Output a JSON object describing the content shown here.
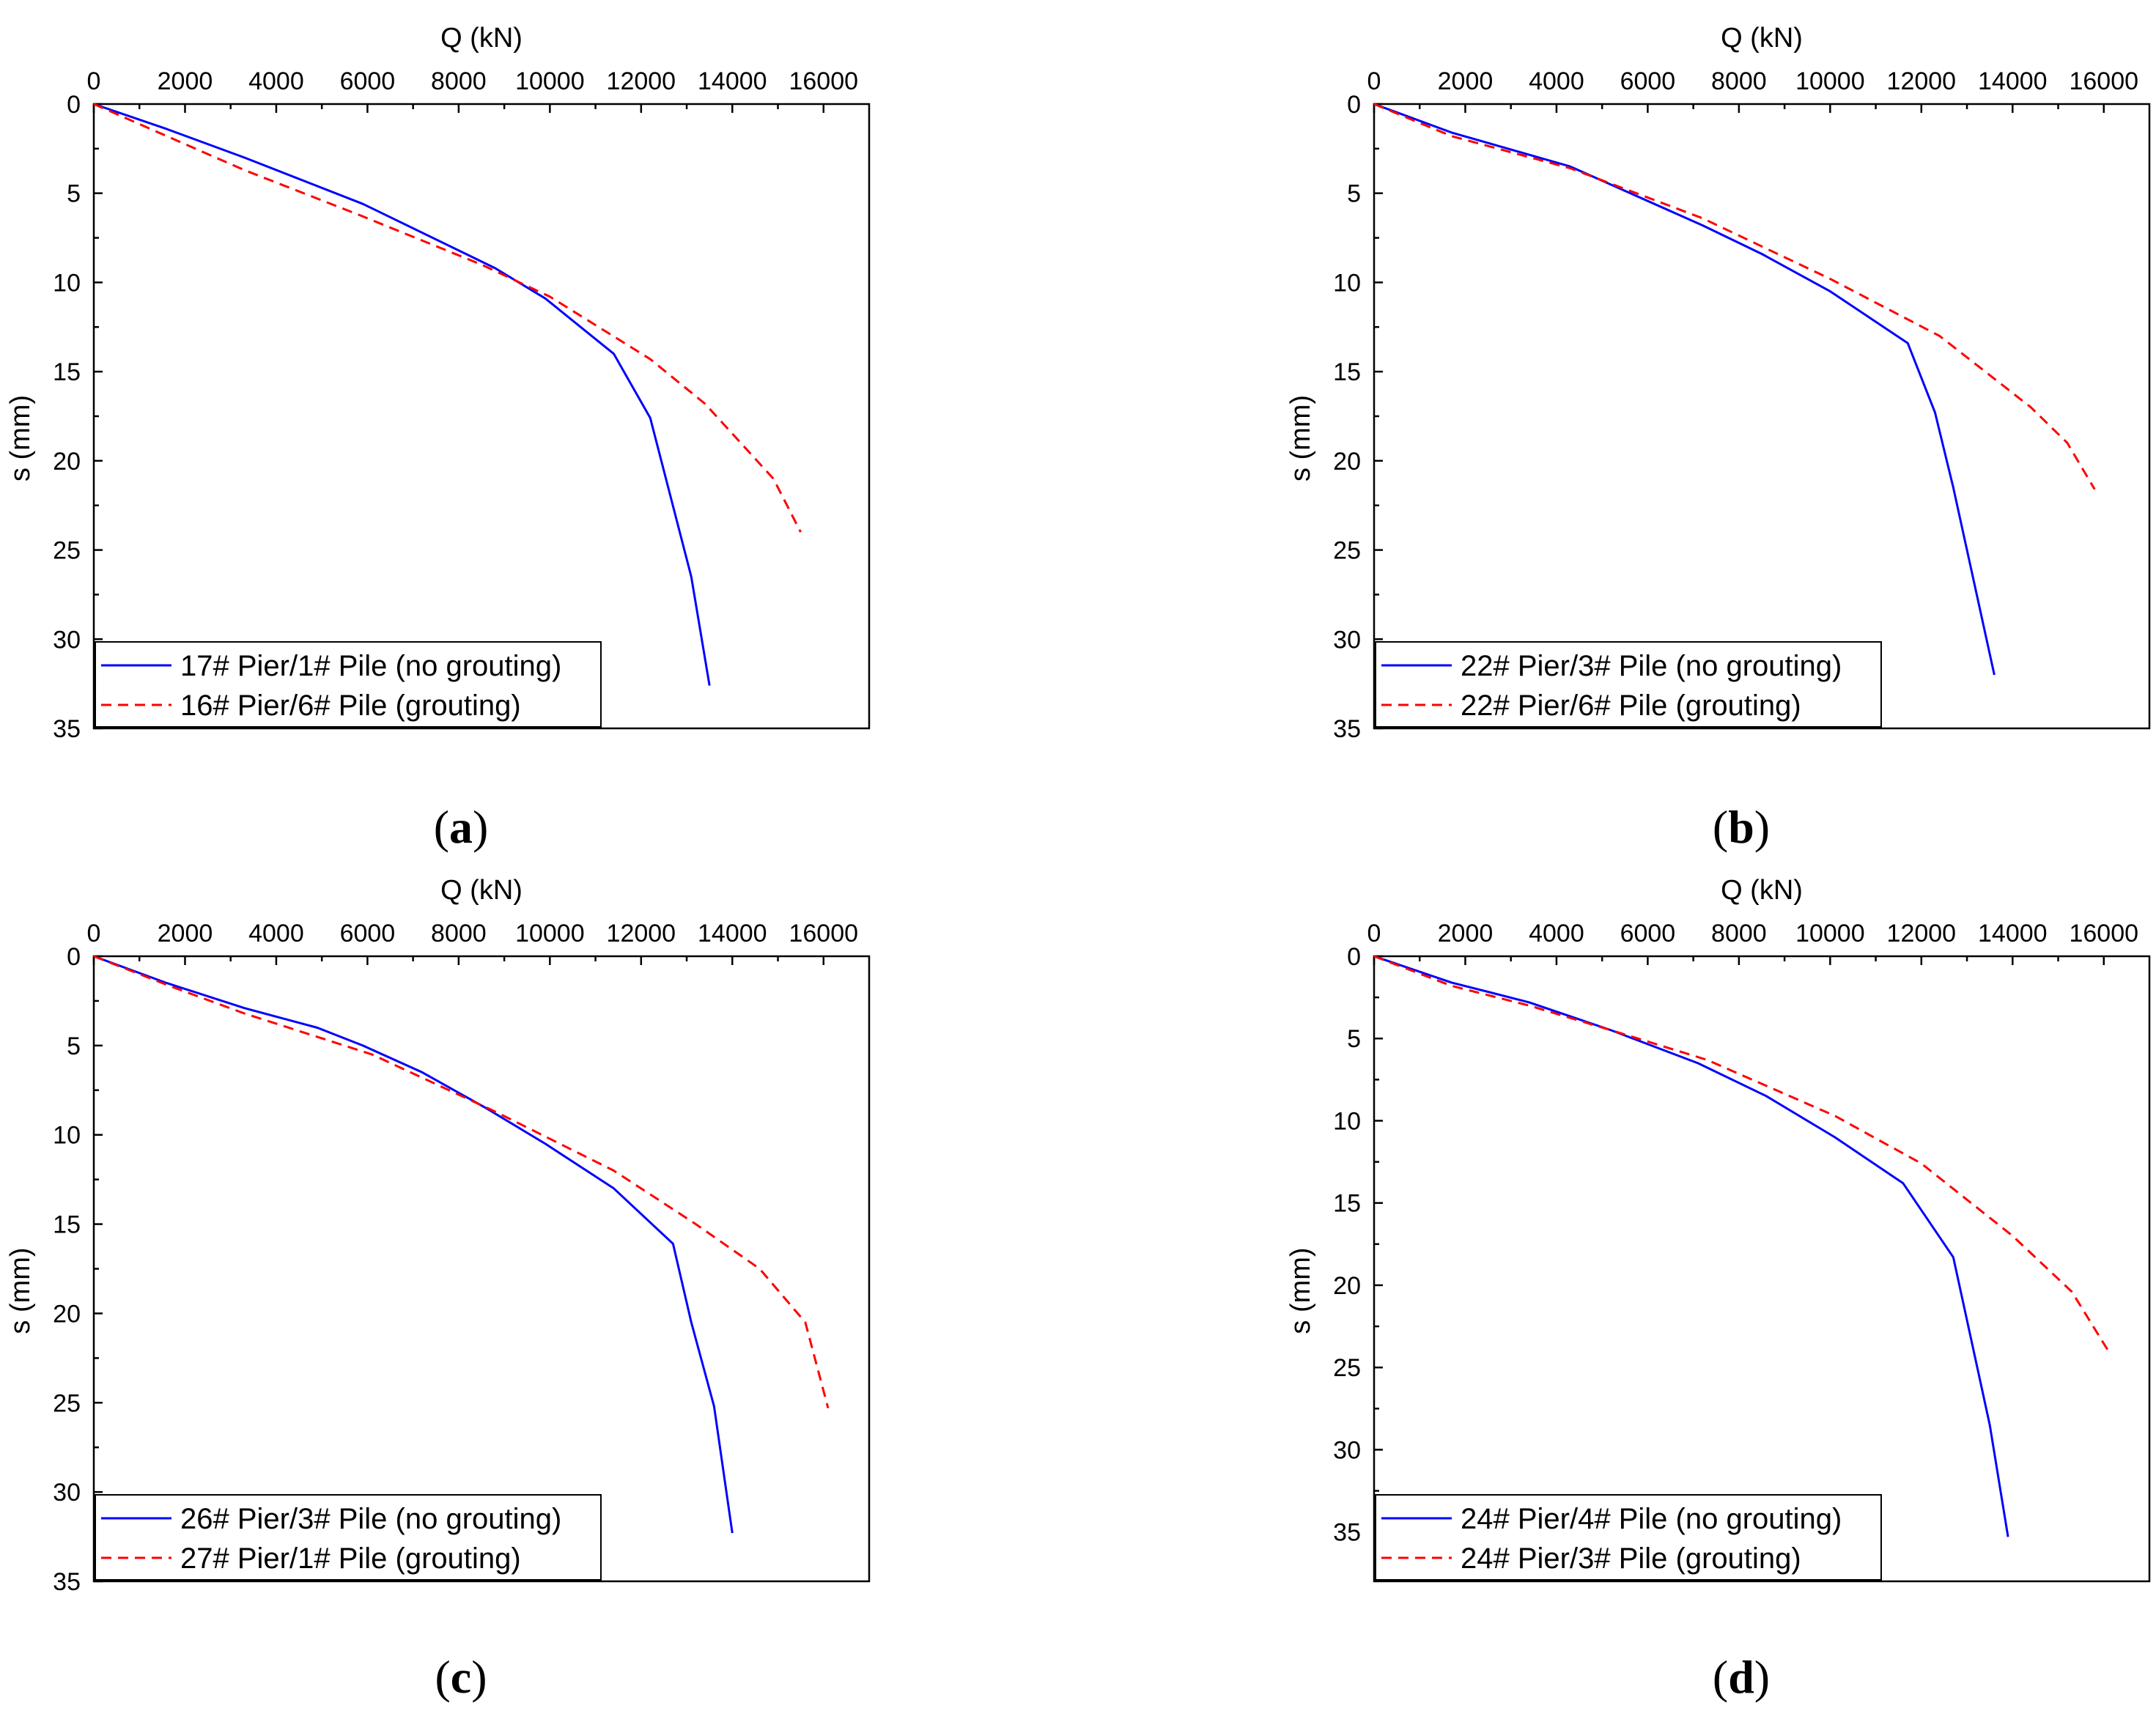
{
  "chart_data": [
    {
      "type": "line",
      "panel_label": "a",
      "xlabel": "Q (kN)",
      "ylabel": "s (mm)",
      "xlim": [
        0,
        17000
      ],
      "ylim": [
        0,
        35
      ],
      "xticks": [
        0,
        2000,
        4000,
        6000,
        8000,
        10000,
        12000,
        14000,
        16000
      ],
      "yticks": [
        0,
        5,
        10,
        15,
        20,
        25,
        30,
        35
      ],
      "y_inverted": true,
      "x_axis_position": "top",
      "legend_position": "bottom-left",
      "series": [
        {
          "name": "17# Pier/1# Pile (no grouting)",
          "color": "#0000ff",
          "dash": "solid",
          "x": [
            0,
            1600,
            3300,
            5900,
            8800,
            9900,
            11400,
            12200,
            13100,
            13500
          ],
          "y": [
            0,
            1.4,
            3.0,
            5.6,
            9.2,
            10.9,
            14.0,
            17.6,
            26.5,
            32.6
          ]
        },
        {
          "name": "16# Pier/6# Pile (grouting)",
          "color": "#ff0000",
          "dash": "dashed",
          "x": [
            0,
            1600,
            3300,
            5800,
            8500,
            10000,
            12200,
            13400,
            14900,
            15500
          ],
          "y": [
            0,
            1.8,
            3.7,
            6.2,
            9.0,
            10.8,
            14.3,
            16.8,
            21.0,
            24.0
          ]
        }
      ]
    },
    {
      "type": "line",
      "panel_label": "b",
      "xlabel": "Q (kN)",
      "ylabel": "s (mm)",
      "xlim": [
        0,
        17000
      ],
      "ylim": [
        0,
        35
      ],
      "xticks": [
        0,
        2000,
        4000,
        6000,
        8000,
        10000,
        12000,
        14000,
        16000
      ],
      "yticks": [
        0,
        5,
        10,
        15,
        20,
        25,
        30,
        35
      ],
      "y_inverted": true,
      "x_axis_position": "top",
      "legend_position": "bottom-left",
      "series": [
        {
          "name": "22# Pier/3# Pile (no grouting)",
          "color": "#0000ff",
          "dash": "solid",
          "x": [
            0,
            1700,
            4300,
            7200,
            8500,
            10000,
            11700,
            12300,
            12700,
            13600
          ],
          "y": [
            0,
            1.6,
            3.5,
            6.8,
            8.4,
            10.5,
            13.4,
            17.3,
            21.5,
            32.0
          ]
        },
        {
          "name": "22# Pier/6# Pile (grouting)",
          "color": "#ff0000",
          "dash": "dashed",
          "x": [
            0,
            1700,
            4300,
            7200,
            10000,
            12400,
            14400,
            15200,
            15800
          ],
          "y": [
            0,
            1.8,
            3.6,
            6.4,
            9.8,
            13.0,
            17.0,
            19.0,
            21.6
          ]
        }
      ]
    },
    {
      "type": "line",
      "panel_label": "c",
      "xlabel": "Q (kN)",
      "ylabel": "s (mm)",
      "xlim": [
        0,
        17000
      ],
      "ylim": [
        0,
        35
      ],
      "xticks": [
        0,
        2000,
        4000,
        6000,
        8000,
        10000,
        12000,
        14000,
        16000
      ],
      "yticks": [
        0,
        5,
        10,
        15,
        20,
        25,
        30,
        35
      ],
      "y_inverted": true,
      "x_axis_position": "top",
      "legend_position": "bottom-left",
      "series": [
        {
          "name": "26# Pier/3# Pile (no grouting)",
          "color": "#0000ff",
          "dash": "solid",
          "x": [
            0,
            1600,
            3300,
            4900,
            5900,
            7200,
            8600,
            9900,
            11400,
            12700,
            13100,
            13600,
            14000
          ],
          "y": [
            0,
            1.5,
            2.9,
            4.0,
            5.0,
            6.5,
            8.5,
            10.5,
            13.0,
            16.1,
            20.5,
            25.2,
            32.3
          ]
        },
        {
          "name": "27# Pier/1# Pile (grouting)",
          "color": "#ff0000",
          "dash": "dashed",
          "x": [
            0,
            1700,
            3300,
            6100,
            8800,
            11400,
            13200,
            14600,
            15600,
            16100
          ],
          "y": [
            0,
            1.7,
            3.2,
            5.5,
            8.7,
            12.0,
            15.0,
            17.5,
            20.5,
            25.3
          ]
        }
      ]
    },
    {
      "type": "line",
      "panel_label": "d",
      "xlabel": "Q (kN)",
      "ylabel": "s (mm)",
      "xlim": [
        0,
        17000
      ],
      "ylim": [
        0,
        38
      ],
      "xticks": [
        0,
        2000,
        4000,
        6000,
        8000,
        10000,
        12000,
        14000,
        16000
      ],
      "yticks": [
        0,
        5,
        10,
        15,
        20,
        25,
        30,
        35
      ],
      "y_inverted": true,
      "x_axis_position": "top",
      "legend_position": "bottom-left",
      "series": [
        {
          "name": "24# Pier/4# Pile (no grouting)",
          "color": "#0000ff",
          "dash": "solid",
          "x": [
            0,
            1700,
            3400,
            5200,
            7100,
            8600,
            10100,
            11600,
            12700,
            13500,
            13900
          ],
          "y": [
            0,
            1.6,
            2.8,
            4.5,
            6.5,
            8.5,
            11.0,
            13.8,
            18.3,
            28.5,
            35.3
          ]
        },
        {
          "name": "24# Pier/3# Pile (grouting)",
          "color": "#ff0000",
          "dash": "dashed",
          "x": [
            0,
            1700,
            3400,
            5200,
            7300,
            10100,
            12000,
            14000,
            15300,
            16100
          ],
          "y": [
            0,
            1.8,
            3.0,
            4.5,
            6.3,
            9.7,
            12.6,
            17.0,
            20.4,
            24.0
          ]
        }
      ]
    }
  ]
}
